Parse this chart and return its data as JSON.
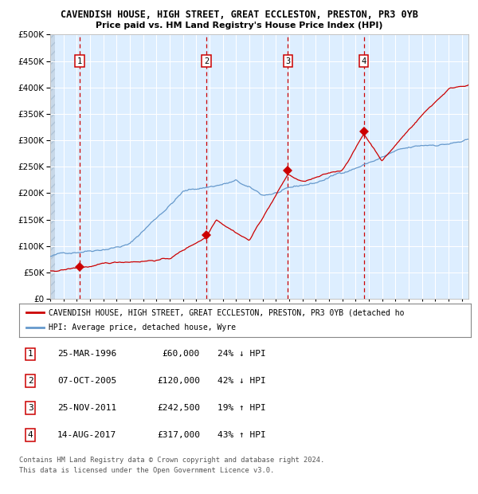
{
  "title1": "CAVENDISH HOUSE, HIGH STREET, GREAT ECCLESTON, PRESTON, PR3 0YB",
  "title2": "Price paid vs. HM Land Registry's House Price Index (HPI)",
  "transactions": [
    {
      "num": 1,
      "date_str": "25-MAR-1996",
      "date_x": 1996.23,
      "price": 60000,
      "pct": "24%",
      "dir": "↓"
    },
    {
      "num": 2,
      "date_str": "07-OCT-2005",
      "date_x": 2005.77,
      "price": 120000,
      "pct": "42%",
      "dir": "↓"
    },
    {
      "num": 3,
      "date_str": "25-NOV-2011",
      "date_x": 2011.9,
      "price": 242500,
      "pct": "19%",
      "dir": "↑"
    },
    {
      "num": 4,
      "date_str": "14-AUG-2017",
      "date_x": 2017.62,
      "price": 317000,
      "pct": "43%",
      "dir": "↑"
    }
  ],
  "legend_label_red": "CAVENDISH HOUSE, HIGH STREET, GREAT ECCLESTON, PRESTON, PR3 0YB (detached ho",
  "legend_label_blue": "HPI: Average price, detached house, Wyre",
  "red_color": "#cc0000",
  "blue_color": "#6699cc",
  "bg_color": "#ddeeff",
  "grid_color": "#ffffff",
  "dashed_color": "#cc0000",
  "footer1": "Contains HM Land Registry data © Crown copyright and database right 2024.",
  "footer2": "This data is licensed under the Open Government Licence v3.0.",
  "ylim": [
    0,
    500000
  ],
  "xlim_start": 1994.0,
  "xlim_end": 2025.5
}
